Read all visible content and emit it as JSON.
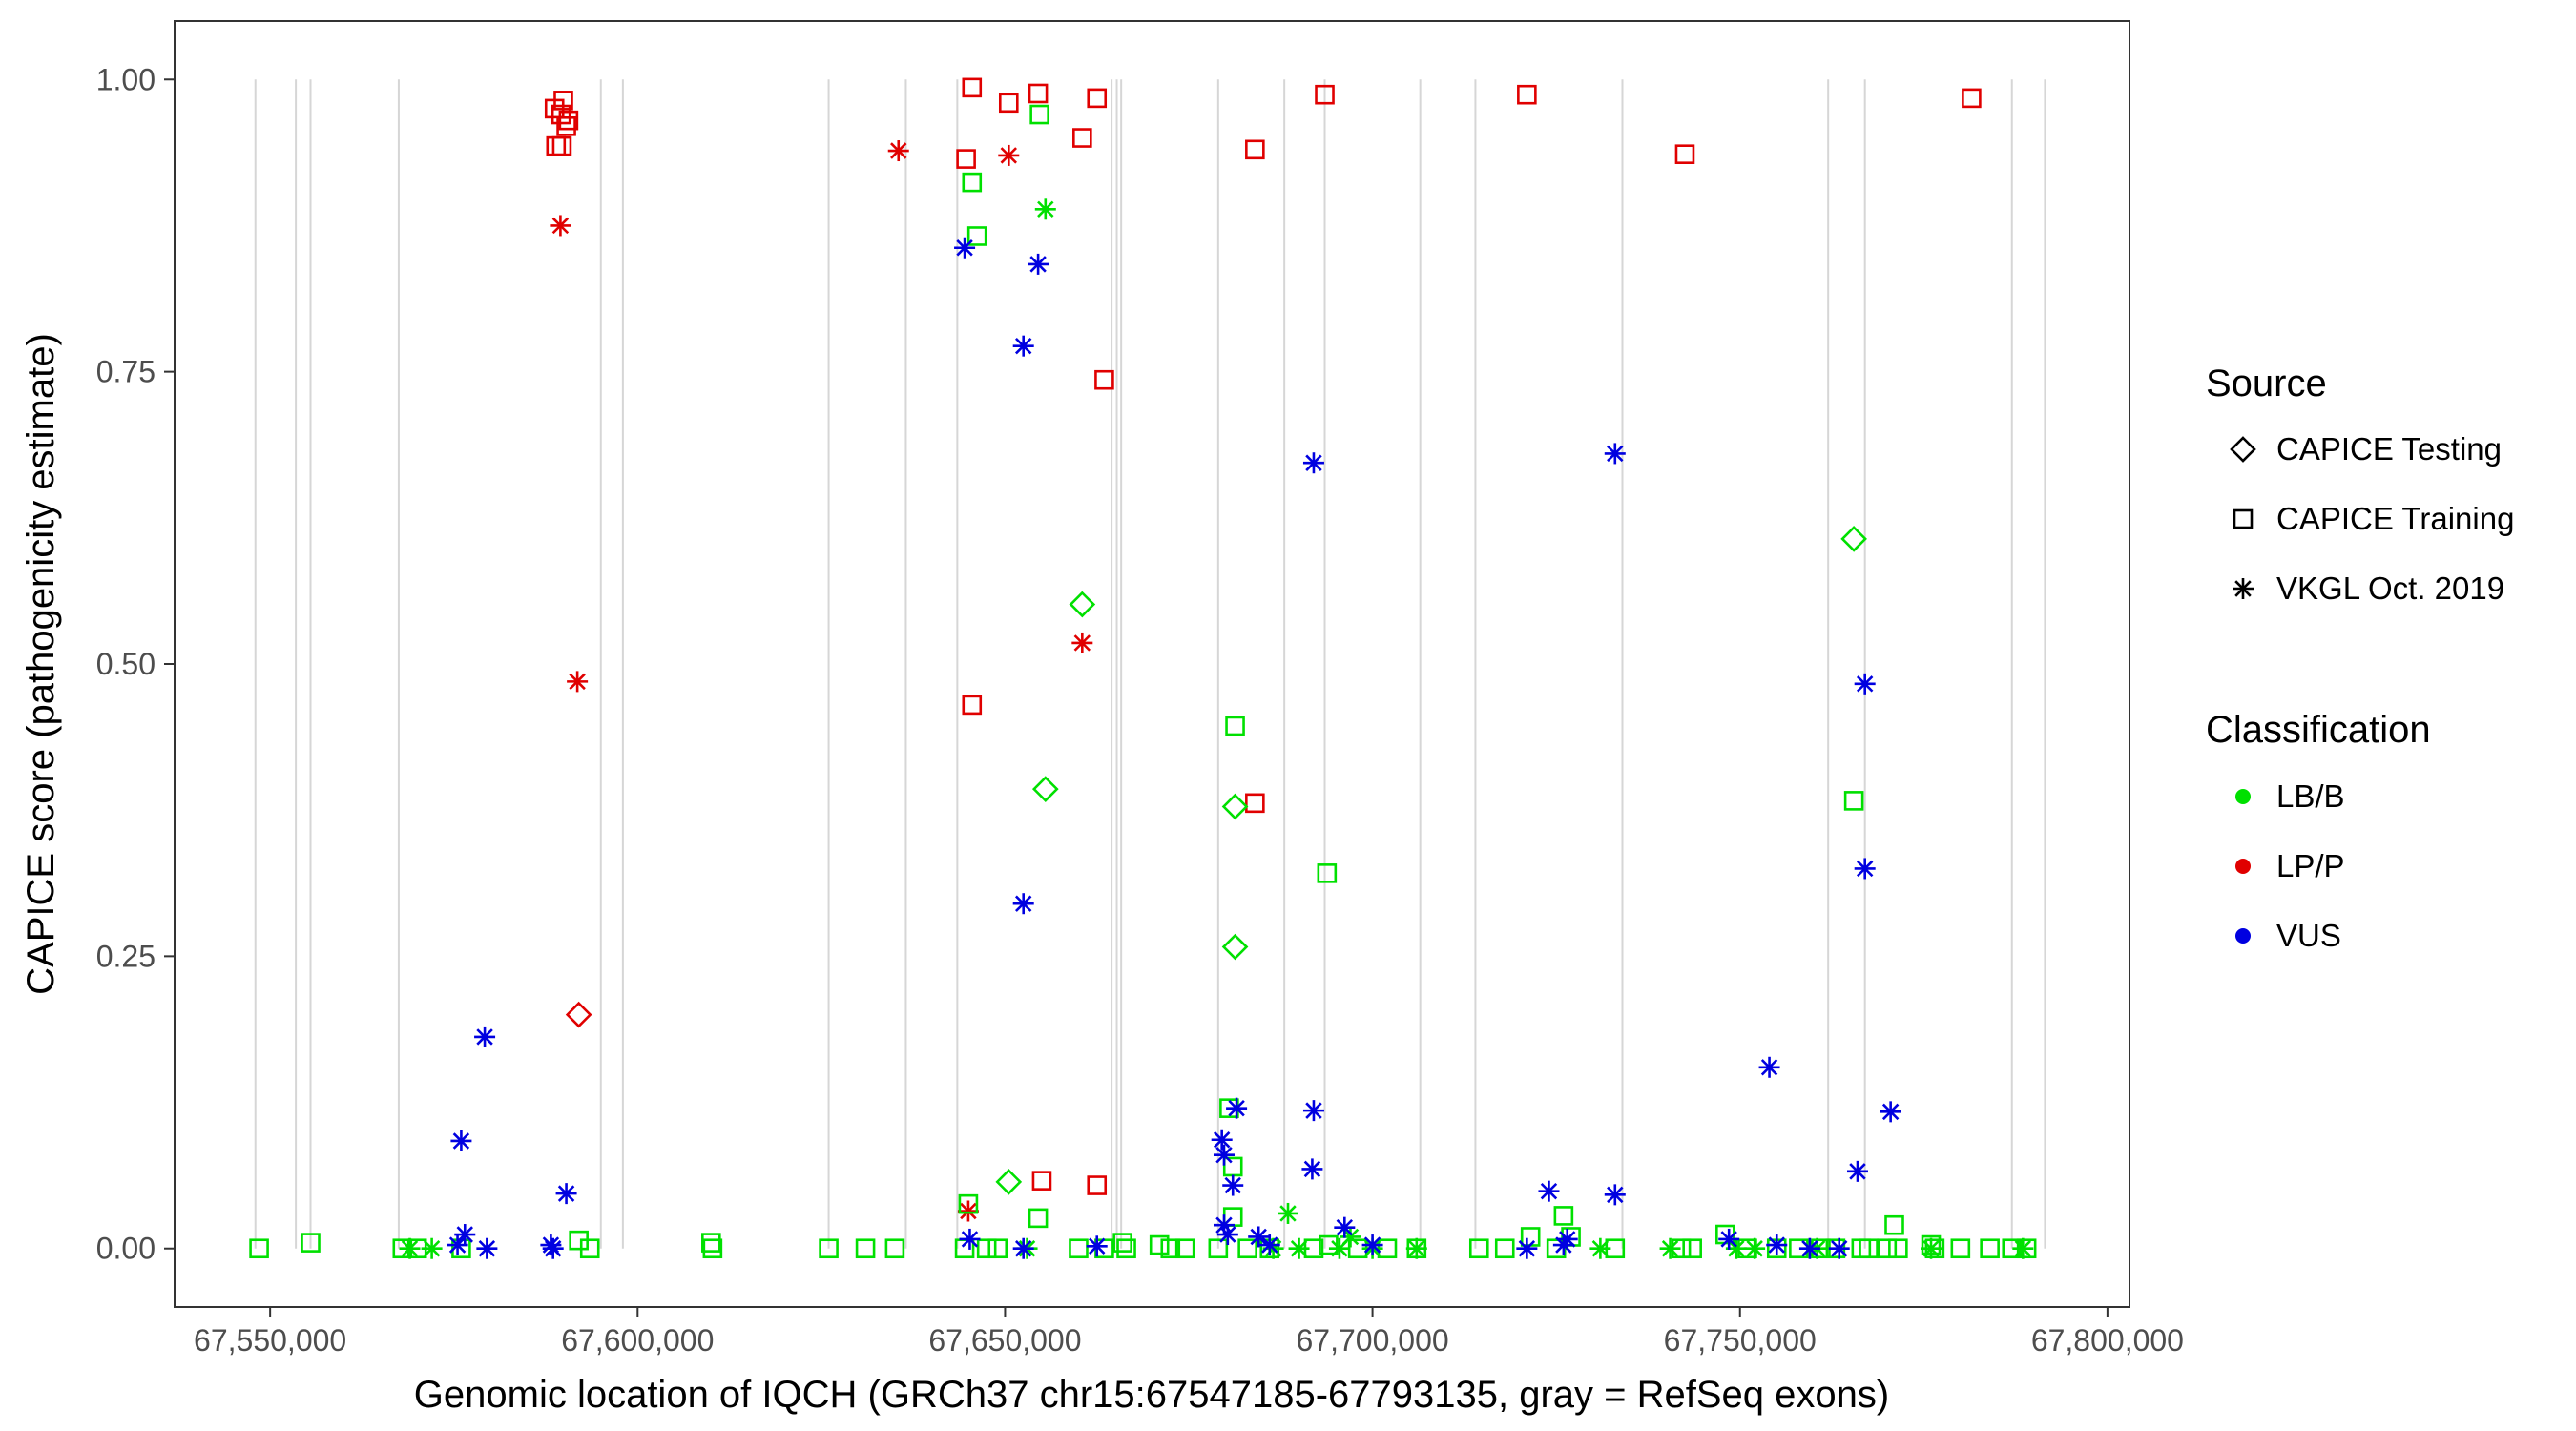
{
  "chart_data": {
    "type": "scatter",
    "xlabel": "Genomic location of IQCH (GRCh37 chr15:67547185-67793135, gray = RefSeq exons)",
    "ylabel": "CAPICE score (pathogenicity estimate)",
    "xlim": [
      67537000,
      67803000
    ],
    "ylim": [
      -0.05,
      1.05
    ],
    "x_ticks": [
      {
        "value": 67550000,
        "label": "67,550,000"
      },
      {
        "value": 67600000,
        "label": "67,600,000"
      },
      {
        "value": 67650000,
        "label": "67,650,000"
      },
      {
        "value": 67700000,
        "label": "67,700,000"
      },
      {
        "value": 67750000,
        "label": "67,750,000"
      },
      {
        "value": 67800000,
        "label": "67,800,000"
      }
    ],
    "y_ticks": [
      {
        "value": 0,
        "label": "0.00"
      },
      {
        "value": 0.25,
        "label": "0.25"
      },
      {
        "value": 0.5,
        "label": "0.50"
      },
      {
        "value": 0.75,
        "label": "0.75"
      },
      {
        "value": 1.0,
        "label": "1.00"
      }
    ],
    "grid": false,
    "exons": [
      67548000,
      67553500,
      67555500,
      67567500,
      67595000,
      67598000,
      67626000,
      67636500,
      67643500,
      67664500,
      67665200,
      67665800,
      67679000,
      67688000,
      67693500,
      67706500,
      67714000,
      67734000,
      67762000,
      67767000,
      67787000,
      67791500
    ],
    "legend": {
      "placement": "right",
      "source_title": "Source",
      "source_items": [
        {
          "label": "CAPICE Testing",
          "shape": "diamond"
        },
        {
          "label": "CAPICE Training",
          "shape": "square"
        },
        {
          "label": "VKGL Oct. 2019",
          "shape": "asterisk"
        }
      ],
      "class_title": "Classification",
      "class_items": [
        {
          "label": "LB/B",
          "color": "#00e000"
        },
        {
          "label": "LP/P",
          "color": "#e00000"
        },
        {
          "label": "VUS",
          "color": "#0000e0"
        }
      ]
    },
    "colors": {
      "LB/B": "#00e000",
      "LP/P": "#e00000",
      "VUS": "#0000e0"
    },
    "series": [
      {
        "source": "CAPICE Training",
        "classification": "LP/P",
        "points": [
          [
            67588700,
            0.975
          ],
          [
            67589600,
            0.97
          ],
          [
            67589900,
            0.982
          ],
          [
            67590300,
            0.96
          ],
          [
            67590600,
            0.965
          ],
          [
            67588900,
            0.943
          ],
          [
            67589700,
            0.943
          ],
          [
            67645500,
            0.993
          ],
          [
            67650500,
            0.98
          ],
          [
            67654500,
            0.988
          ],
          [
            67662500,
            0.984
          ],
          [
            67644700,
            0.932
          ],
          [
            67660500,
            0.95
          ],
          [
            67684000,
            0.94
          ],
          [
            67693500,
            0.987
          ],
          [
            67663500,
            0.743
          ],
          [
            67645500,
            0.465
          ],
          [
            67655000,
            0.058
          ],
          [
            67662500,
            0.054
          ],
          [
            67684000,
            0.381
          ],
          [
            67721000,
            0.987
          ],
          [
            67742500,
            0.936
          ],
          [
            67781500,
            0.984
          ]
        ]
      },
      {
        "source": "VKGL Oct. 2019",
        "classification": "LP/P",
        "points": [
          [
            67589500,
            0.875
          ],
          [
            67591800,
            0.485
          ],
          [
            67635500,
            0.939
          ],
          [
            67650500,
            0.935
          ],
          [
            67660500,
            0.518
          ],
          [
            67645000,
            0.032
          ]
        ]
      },
      {
        "source": "CAPICE Testing",
        "classification": "LP/P",
        "points": [
          [
            67592000,
            0.2
          ]
        ]
      },
      {
        "source": "CAPICE Training",
        "classification": "LB/B",
        "points": [
          [
            67654700,
            0.97
          ],
          [
            67645500,
            0.912
          ],
          [
            67646200,
            0.866
          ],
          [
            67681300,
            0.447
          ],
          [
            67693800,
            0.321
          ],
          [
            67765500,
            0.383
          ],
          [
            67680500,
            0.12
          ],
          [
            67681000,
            0.07
          ],
          [
            67645000,
            0.038
          ],
          [
            67654500,
            0.026
          ],
          [
            67681000,
            0.027
          ],
          [
            67726000,
            0.028
          ],
          [
            67771000,
            0.02
          ],
          [
            67548500,
            0.0
          ],
          [
            67555500,
            0.005
          ],
          [
            67568000,
            0.0
          ],
          [
            67570000,
            0.0
          ],
          [
            67576000,
            0.0
          ],
          [
            67592000,
            0.007
          ],
          [
            67593500,
            0.0
          ],
          [
            67610000,
            0.005
          ],
          [
            67610200,
            0.0
          ],
          [
            67626000,
            0.0
          ],
          [
            67631000,
            0.0
          ],
          [
            67635000,
            0.0
          ],
          [
            67644500,
            0.0
          ],
          [
            67647500,
            0.0
          ],
          [
            67649000,
            0.0
          ],
          [
            67660000,
            0.0
          ],
          [
            67663500,
            0.0
          ],
          [
            67666000,
            0.005
          ],
          [
            67666500,
            0.0
          ],
          [
            67671000,
            0.003
          ],
          [
            67672500,
            0.0
          ],
          [
            67674500,
            0.0
          ],
          [
            67679000,
            0.0
          ],
          [
            67683000,
            0.0
          ],
          [
            67686000,
            0.0
          ],
          [
            67692000,
            0.0
          ],
          [
            67694000,
            0.003
          ],
          [
            67698000,
            0.0
          ],
          [
            67702000,
            0.0
          ],
          [
            67706000,
            0.0
          ],
          [
            67714500,
            0.0
          ],
          [
            67718000,
            0.0
          ],
          [
            67721500,
            0.01
          ],
          [
            67725000,
            0.0
          ],
          [
            67727000,
            0.01
          ],
          [
            67733000,
            0.0
          ],
          [
            67742000,
            0.0
          ],
          [
            67743500,
            0.0
          ],
          [
            67748000,
            0.012
          ],
          [
            67751000,
            0.0
          ],
          [
            67755000,
            0.0
          ],
          [
            67758000,
            0.0
          ],
          [
            67761000,
            0.0
          ],
          [
            67763000,
            0.0
          ],
          [
            67766500,
            0.0
          ],
          [
            67767500,
            0.0
          ],
          [
            67770000,
            0.0
          ],
          [
            67771500,
            0.0
          ],
          [
            67776000,
            0.003
          ],
          [
            67776500,
            0.0
          ],
          [
            67780000,
            0.0
          ],
          [
            67784000,
            0.0
          ],
          [
            67787000,
            0.0
          ],
          [
            67789000,
            0.0
          ]
        ]
      },
      {
        "source": "VKGL Oct. 2019",
        "classification": "LB/B",
        "points": [
          [
            67655500,
            0.889
          ],
          [
            67688500,
            0.03
          ],
          [
            67569000,
            0.0
          ],
          [
            67572000,
            0.0
          ],
          [
            67653000,
            0.0
          ],
          [
            67686500,
            0.0
          ],
          [
            67690000,
            0.0
          ],
          [
            67695500,
            0.0
          ],
          [
            67697000,
            0.01
          ],
          [
            67700000,
            0.0
          ],
          [
            67706000,
            0.0
          ],
          [
            67731000,
            0.0
          ],
          [
            67740500,
            0.0
          ],
          [
            67749500,
            0.0
          ],
          [
            67752000,
            0.0
          ],
          [
            67760500,
            0.0
          ],
          [
            67776000,
            0.0
          ],
          [
            67788500,
            0.0
          ]
        ]
      },
      {
        "source": "CAPICE Testing",
        "classification": "LB/B",
        "points": [
          [
            67765500,
            0.607
          ],
          [
            67660500,
            0.551
          ],
          [
            67655500,
            0.393
          ],
          [
            67681300,
            0.378
          ],
          [
            67681300,
            0.258
          ],
          [
            67650500,
            0.057
          ]
        ]
      },
      {
        "source": "VKGL Oct. 2019",
        "classification": "VUS",
        "points": [
          [
            67644500,
            0.856
          ],
          [
            67654500,
            0.842
          ],
          [
            67652500,
            0.772
          ],
          [
            67692000,
            0.672
          ],
          [
            67733000,
            0.68
          ],
          [
            67652500,
            0.295
          ],
          [
            67579200,
            0.181
          ],
          [
            67576000,
            0.092
          ],
          [
            67590300,
            0.047
          ],
          [
            67576500,
            0.012
          ],
          [
            67575500,
            0.003
          ],
          [
            67579500,
            0.0
          ],
          [
            67588200,
            0.003
          ],
          [
            67588500,
            0.0
          ],
          [
            67645200,
            0.008
          ],
          [
            67652500,
            0.0
          ],
          [
            67662500,
            0.002
          ],
          [
            67679500,
            0.093
          ],
          [
            67679800,
            0.08
          ],
          [
            67681000,
            0.054
          ],
          [
            67681500,
            0.12
          ],
          [
            67679800,
            0.02
          ],
          [
            67680300,
            0.012
          ],
          [
            67684500,
            0.01
          ],
          [
            67686000,
            0.003
          ],
          [
            67692000,
            0.118
          ],
          [
            67691800,
            0.068
          ],
          [
            67696200,
            0.018
          ],
          [
            67700000,
            0.003
          ],
          [
            67724000,
            0.049
          ],
          [
            67733000,
            0.046
          ],
          [
            67721000,
            0.0
          ],
          [
            67726000,
            0.003
          ],
          [
            67726500,
            0.008
          ],
          [
            67748500,
            0.008
          ],
          [
            67754000,
            0.155
          ],
          [
            67767000,
            0.483
          ],
          [
            67767000,
            0.325
          ],
          [
            67770500,
            0.117
          ],
          [
            67766000,
            0.066
          ],
          [
            67755000,
            0.003
          ],
          [
            67759500,
            0.0
          ],
          [
            67763500,
            0.0
          ]
        ]
      }
    ]
  }
}
